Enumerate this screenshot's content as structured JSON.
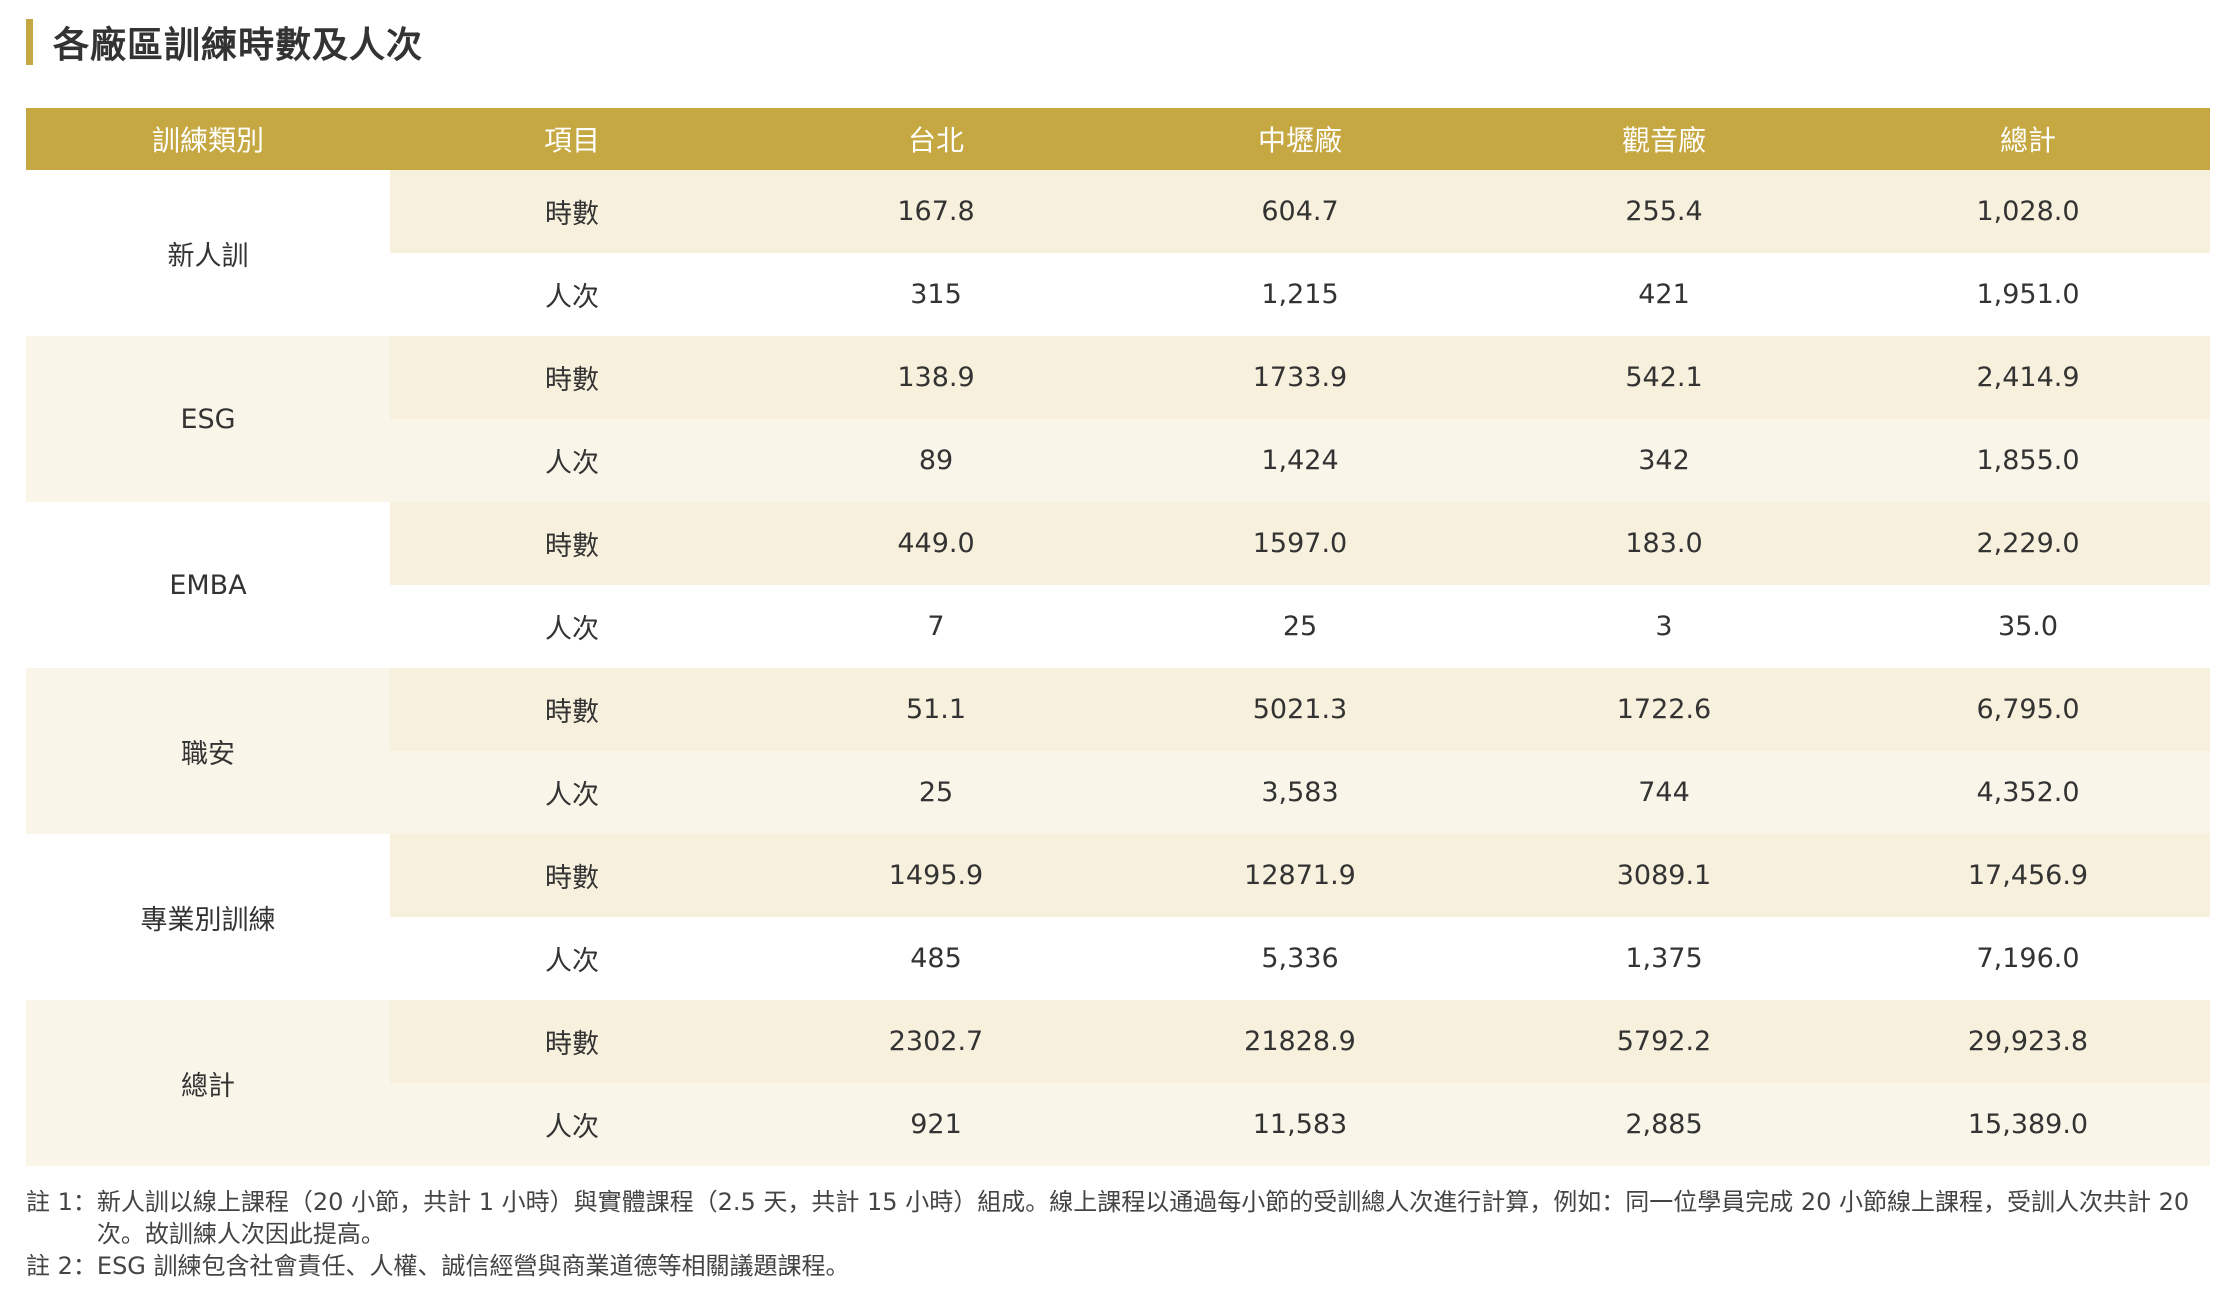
{
  "title": "各廠區訓練時數及人次",
  "colors": {
    "accent": "#c6a842",
    "row_light": "#f7f0dc",
    "row_alt": "#f9f5e9"
  },
  "table": {
    "headers": [
      "訓練類別",
      "項目",
      "台北",
      "中壢廠",
      "觀音廠",
      "總計"
    ],
    "groups": [
      {
        "category": "新人訓",
        "rows": [
          {
            "item": "時數",
            "values": [
              "167.8",
              "604.7",
              "255.4",
              "1,028.0"
            ]
          },
          {
            "item": "人次",
            "values": [
              "315",
              "1,215",
              "421",
              "1,951.0"
            ]
          }
        ]
      },
      {
        "category": "ESG",
        "rows": [
          {
            "item": "時數",
            "values": [
              "138.9",
              "1733.9",
              "542.1",
              "2,414.9"
            ]
          },
          {
            "item": "人次",
            "values": [
              "89",
              "1,424",
              "342",
              "1,855.0"
            ]
          }
        ]
      },
      {
        "category": "EMBA",
        "rows": [
          {
            "item": "時數",
            "values": [
              "449.0",
              "1597.0",
              "183.0",
              "2,229.0"
            ]
          },
          {
            "item": "人次",
            "values": [
              "7",
              "25",
              "3",
              "35.0"
            ]
          }
        ]
      },
      {
        "category": "職安",
        "rows": [
          {
            "item": "時數",
            "values": [
              "51.1",
              "5021.3",
              "1722.6",
              "6,795.0"
            ]
          },
          {
            "item": "人次",
            "values": [
              "25",
              "3,583",
              "744",
              "4,352.0"
            ]
          }
        ]
      },
      {
        "category": "專業別訓練",
        "rows": [
          {
            "item": "時數",
            "values": [
              "1495.9",
              "12871.9",
              "3089.1",
              "17,456.9"
            ]
          },
          {
            "item": "人次",
            "values": [
              "485",
              "5,336",
              "1,375",
              "7,196.0"
            ]
          }
        ]
      },
      {
        "category": "總計",
        "rows": [
          {
            "item": "時數",
            "values": [
              "2302.7",
              "21828.9",
              "5792.2",
              "29,923.8"
            ]
          },
          {
            "item": "人次",
            "values": [
              "921",
              "11,583",
              "2,885",
              "15,389.0"
            ]
          }
        ]
      }
    ]
  },
  "notes": [
    {
      "label": "註 1：",
      "text": "新人訓以線上課程（20 小節，共計 1 小時）與實體課程（2.5 天，共計 15 小時）組成。線上課程以通過每小節的受訓總人次進行計算，例如：同一位學員完成 20 小節線上課程，受訓人次共計 20 次。故訓練人次因此提高。"
    },
    {
      "label": "註 2：",
      "text": "ESG 訓練包含社會責任、人權、誠信經營與商業道德等相關議題課程。"
    }
  ]
}
